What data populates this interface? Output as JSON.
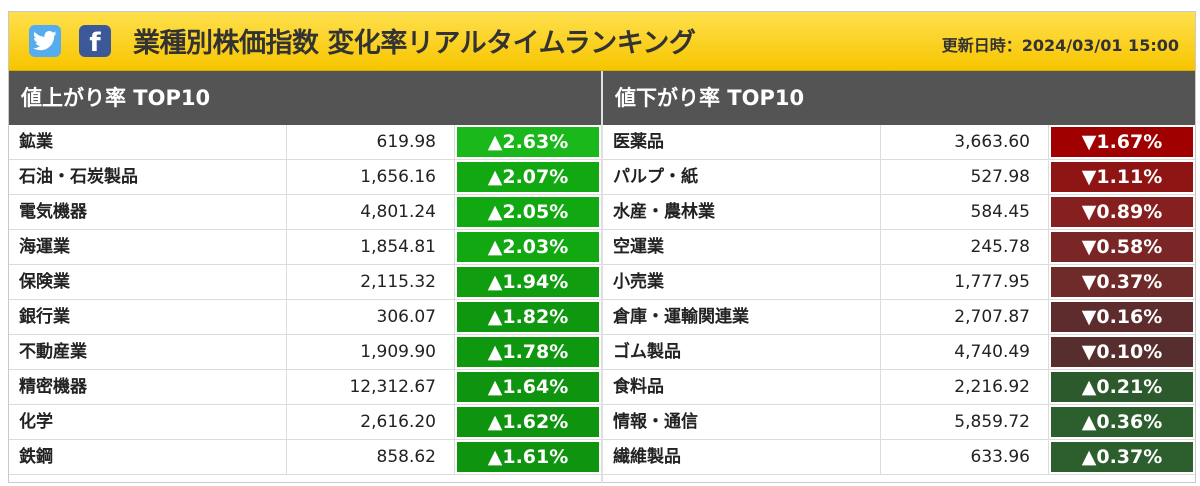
{
  "header": {
    "title": "業種別株価指数 変化率リアルタイムランキング",
    "updated_label": "更新日時：2024/03/01 15:00",
    "social": [
      {
        "name": "twitter",
        "icon": "twitter-bird-icon"
      },
      {
        "name": "facebook",
        "icon": "facebook-f-icon"
      }
    ]
  },
  "gainers": {
    "heading": "値上がり率 TOP10",
    "rows": [
      {
        "name": "鉱業",
        "value": "619.98",
        "change": "▲2.63%",
        "color": "#1ab81a"
      },
      {
        "name": "石油・石炭製品",
        "value": "1,656.16",
        "change": "▲2.07%",
        "color": "#12a812"
      },
      {
        "name": "電気機器",
        "value": "4,801.24",
        "change": "▲2.05%",
        "color": "#12a812"
      },
      {
        "name": "海運業",
        "value": "1,854.81",
        "change": "▲2.03%",
        "color": "#12a812"
      },
      {
        "name": "保険業",
        "value": "2,115.32",
        "change": "▲1.94%",
        "color": "#109e10"
      },
      {
        "name": "銀行業",
        "value": "306.07",
        "change": "▲1.82%",
        "color": "#0f980f"
      },
      {
        "name": "不動産業",
        "value": "1,909.90",
        "change": "▲1.78%",
        "color": "#0f980f"
      },
      {
        "name": "精密機器",
        "value": "12,312.67",
        "change": "▲1.64%",
        "color": "#0f940f"
      },
      {
        "name": "化学",
        "value": "2,616.20",
        "change": "▲1.62%",
        "color": "#0f940f"
      },
      {
        "name": "鉄鋼",
        "value": "858.62",
        "change": "▲1.61%",
        "color": "#0f940f"
      }
    ]
  },
  "losers": {
    "heading": "値下がり率 TOP10",
    "rows": [
      {
        "name": "医薬品",
        "value": "3,663.60",
        "change": "▼1.67%",
        "color": "#a00000"
      },
      {
        "name": "パルプ・紙",
        "value": "527.98",
        "change": "▼1.11%",
        "color": "#8f1414"
      },
      {
        "name": "水産・農林業",
        "value": "584.45",
        "change": "▼0.89%",
        "color": "#862020"
      },
      {
        "name": "空運業",
        "value": "245.78",
        "change": "▼0.58%",
        "color": "#7b2626"
      },
      {
        "name": "小売業",
        "value": "1,777.95",
        "change": "▼0.37%",
        "color": "#6f2a2a"
      },
      {
        "name": "倉庫・運輸関連業",
        "value": "2,707.87",
        "change": "▼0.16%",
        "color": "#5e2c2c"
      },
      {
        "name": "ゴム製品",
        "value": "4,740.49",
        "change": "▼0.10%",
        "color": "#562e2e"
      },
      {
        "name": "食料品",
        "value": "2,216.92",
        "change": "▲0.21%",
        "color": "#2d5a2d"
      },
      {
        "name": "情報・通信",
        "value": "5,859.72",
        "change": "▲0.36%",
        "color": "#2d5e2d"
      },
      {
        "name": "繊維製品",
        "value": "633.96",
        "change": "▲0.37%",
        "color": "#2d5e2d"
      }
    ]
  }
}
